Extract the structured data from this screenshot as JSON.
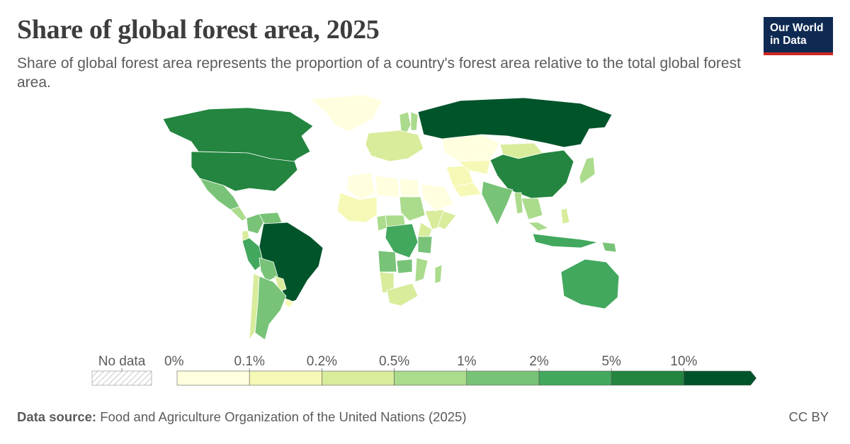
{
  "header": {
    "title": "Share of global forest area, 2025",
    "subtitle": "Share of global forest area represents the proportion of a country's forest area relative to the total global forest area."
  },
  "logo": {
    "line1": "Our World",
    "line2": "in Data"
  },
  "legend": {
    "no_data_label": "No data",
    "ticks": [
      "0%",
      "0.1%",
      "0.2%",
      "0.5%",
      "1%",
      "2%",
      "5%",
      "10%"
    ],
    "bins": [
      {
        "from": 0,
        "to": 0.1,
        "color": "#ffffe0"
      },
      {
        "from": 0.1,
        "to": 0.2,
        "color": "#f6f9b6"
      },
      {
        "from": 0.2,
        "to": 0.5,
        "color": "#d8ec9c"
      },
      {
        "from": 0.5,
        "to": 1,
        "color": "#abdb8c"
      },
      {
        "from": 1,
        "to": 2,
        "color": "#78c377"
      },
      {
        "from": 2,
        "to": 5,
        "color": "#42a85e"
      },
      {
        "from": 5,
        "to": 10,
        "color": "#23853f"
      },
      {
        "from": 10,
        "to": null,
        "color": "#00542a"
      }
    ]
  },
  "regions": [
    {
      "name": "Russia",
      "bin": 7
    },
    {
      "name": "Brazil",
      "bin": 7
    },
    {
      "name": "Canada",
      "bin": 6
    },
    {
      "name": "United States",
      "bin": 6
    },
    {
      "name": "China",
      "bin": 6
    },
    {
      "name": "Australia",
      "bin": 5
    },
    {
      "name": "DR Congo",
      "bin": 5
    },
    {
      "name": "Indonesia",
      "bin": 5
    },
    {
      "name": "Peru",
      "bin": 5
    },
    {
      "name": "India",
      "bin": 4
    },
    {
      "name": "Mexico",
      "bin": 4
    },
    {
      "name": "Colombia",
      "bin": 4
    },
    {
      "name": "Bolivia",
      "bin": 4
    },
    {
      "name": "Angola",
      "bin": 4
    },
    {
      "name": "Argentina",
      "bin": 4
    },
    {
      "name": "Venezuela",
      "bin": 4
    },
    {
      "name": "Zambia",
      "bin": 4
    },
    {
      "name": "Tanzania",
      "bin": 4
    },
    {
      "name": "Papua New Guinea",
      "bin": 4
    },
    {
      "name": "Sweden",
      "bin": 3
    },
    {
      "name": "Finland",
      "bin": 3
    },
    {
      "name": "Japan",
      "bin": 3
    },
    {
      "name": "Mozambique",
      "bin": 3
    },
    {
      "name": "Myanmar",
      "bin": 3
    },
    {
      "name": "Central African Republic",
      "bin": 3
    },
    {
      "name": "Sudan",
      "bin": 3
    },
    {
      "name": "Madagascar",
      "bin": 3
    },
    {
      "name": "Mongolia",
      "bin": 2
    },
    {
      "name": "Chile",
      "bin": 2
    },
    {
      "name": "Paraguay",
      "bin": 2
    },
    {
      "name": "Malaysia",
      "bin": 3
    },
    {
      "name": "Ethiopia",
      "bin": 2
    },
    {
      "name": "Cameroon",
      "bin": 3
    },
    {
      "name": "Ecuador",
      "bin": 2
    },
    {
      "name": "Kazakhstan",
      "bin": 0
    },
    {
      "name": "Greenland",
      "bin": 0
    },
    {
      "name": "Saudi Arabia",
      "bin": 0
    },
    {
      "name": "Algeria",
      "bin": 0
    },
    {
      "name": "Libya",
      "bin": 0
    },
    {
      "name": "Egypt",
      "bin": 0
    },
    {
      "name": "Iran",
      "bin": 1
    },
    {
      "name": "New Zealand",
      "bin": 2
    },
    {
      "name": "Uruguay",
      "bin": 1
    },
    {
      "name": "Namibia",
      "bin": 2
    },
    {
      "name": "South Africa",
      "bin": 2
    }
  ],
  "footer": {
    "source_label": "Data source:",
    "source_text": "Food and Agriculture Organization of the United Nations (2025)",
    "license": "CC BY"
  }
}
